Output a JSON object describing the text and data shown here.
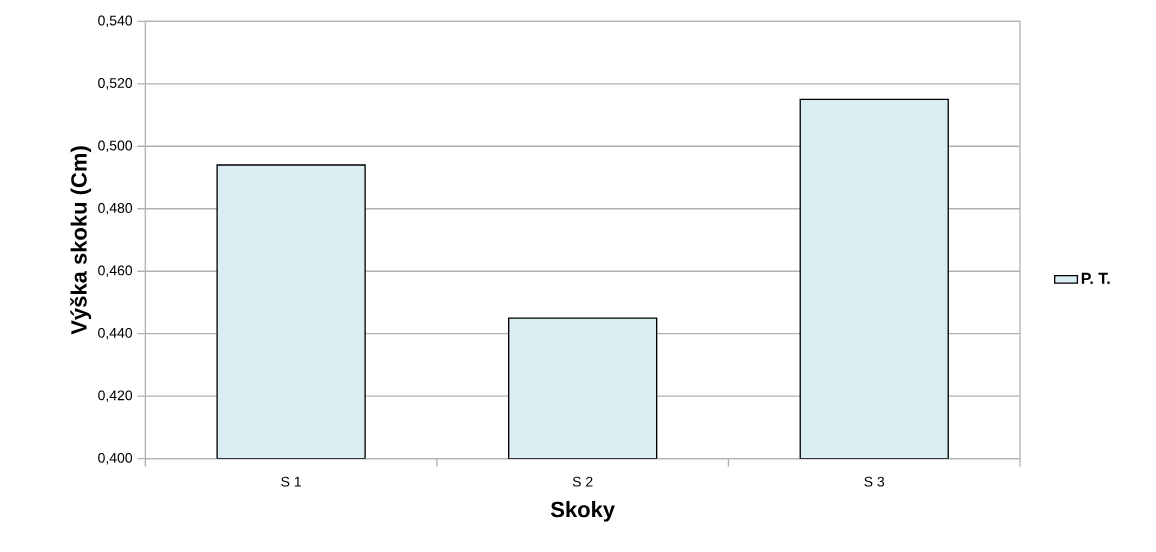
{
  "chart_data": {
    "type": "bar",
    "xlabel": "Skoky",
    "ylabel": "Výška skoku (Cm)",
    "categories": [
      "S 1",
      "S 2",
      "S 3"
    ],
    "series": [
      {
        "name": "P. T.",
        "color": "#daedf3",
        "values": [
          0.494,
          0.445,
          0.515
        ]
      }
    ],
    "ylim": [
      0.4,
      0.54
    ],
    "yticks": [
      {
        "value": 0.4,
        "label": "0,400"
      },
      {
        "value": 0.42,
        "label": "0,420"
      },
      {
        "value": 0.44,
        "label": "0,440"
      },
      {
        "value": 0.46,
        "label": "0,460"
      },
      {
        "value": 0.48,
        "label": "0,480"
      },
      {
        "value": 0.5,
        "label": "0,500"
      },
      {
        "value": 0.52,
        "label": "0,520"
      },
      {
        "value": 0.54,
        "label": "0,540"
      }
    ],
    "grid": "y",
    "legend": "right"
  }
}
